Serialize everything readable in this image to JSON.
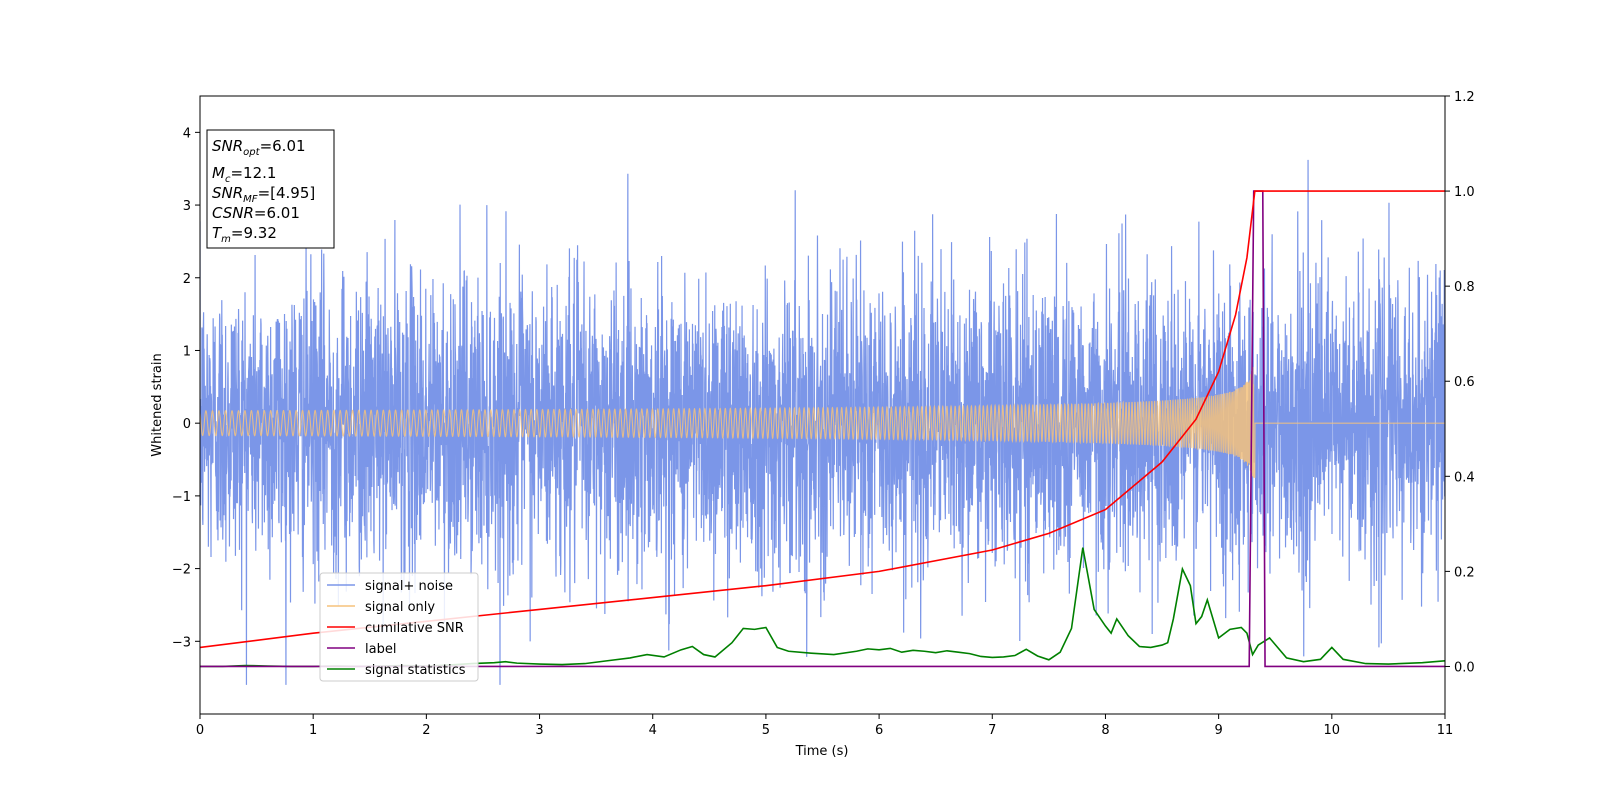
{
  "chart_data": {
    "type": "line",
    "xlabel": "Time (s)",
    "ylabel": "Whitened strain",
    "xlim": [
      0,
      11
    ],
    "ylim": [
      -4,
      4.5
    ],
    "y2lim": [
      -0.1,
      1.2
    ],
    "x_ticks": [
      0,
      1,
      2,
      3,
      4,
      5,
      6,
      7,
      8,
      9,
      10,
      11
    ],
    "y_ticks": [
      -3,
      -2,
      -1,
      0,
      1,
      2,
      3,
      4
    ],
    "y_tick_labels": [
      "−3",
      "−2",
      "−1",
      "0",
      "1",
      "2",
      "3",
      "4"
    ],
    "y2_ticks": [
      0.0,
      0.2,
      0.4,
      0.6,
      0.8,
      1.0,
      1.2
    ],
    "y2_tick_labels": [
      "0.0",
      "0.2",
      "0.4",
      "0.6",
      "0.8",
      "1.0",
      "1.2"
    ],
    "grid": false,
    "legend_position": "bottom-left",
    "info_box": {
      "position": "top-left",
      "lines": [
        {
          "sym": "SNR",
          "sub": "opt",
          "value": "=6.01"
        },
        {
          "sym": "M",
          "sub": "c",
          "value": "=12.1"
        },
        {
          "sym": "SNR",
          "sub": "MF",
          "value": "=[4.95]"
        },
        {
          "sym": "CSNR",
          "sub": "",
          "value": "=6.01"
        },
        {
          "sym": "T",
          "sub": "m",
          "value": "=9.32"
        }
      ]
    },
    "series": [
      {
        "name": "signal+ noise",
        "axis": "left",
        "color": "#7b96e8",
        "description_values": {
          "mean": 0,
          "std": 1.0,
          "min": -3.6,
          "max": 4.17
        }
      },
      {
        "name": "signal only",
        "axis": "left",
        "color": "#f5c27c",
        "merger_time": 9.32,
        "peak_amplitude": 0.85
      },
      {
        "name": "cumilative SNR",
        "axis": "right",
        "color": "#ff0000",
        "x": [
          0,
          1,
          2,
          3,
          4,
          5,
          6,
          7,
          7.5,
          8,
          8.5,
          8.8,
          9.0,
          9.15,
          9.25,
          9.32,
          11
        ],
        "y": [
          0.04,
          0.07,
          0.095,
          0.12,
          0.145,
          0.17,
          0.2,
          0.245,
          0.28,
          0.33,
          0.43,
          0.52,
          0.62,
          0.74,
          0.86,
          1.0,
          1.0
        ]
      },
      {
        "name": "label",
        "axis": "right",
        "color": "#800080",
        "x": [
          0,
          9.27,
          9.31,
          9.39,
          9.41,
          11
        ],
        "y": [
          0,
          0,
          1,
          1,
          0,
          0
        ]
      },
      {
        "name": "signal statistics",
        "axis": "right",
        "color": "#008000",
        "x": [
          0,
          0.2,
          0.4,
          0.6,
          0.8,
          1.0,
          1.2,
          1.4,
          1.6,
          1.8,
          2.0,
          2.2,
          2.4,
          2.6,
          2.7,
          2.8,
          3.0,
          3.2,
          3.4,
          3.6,
          3.8,
          3.95,
          4.1,
          4.25,
          4.35,
          4.45,
          4.55,
          4.7,
          4.8,
          4.9,
          5.0,
          5.1,
          5.2,
          5.4,
          5.6,
          5.8,
          5.9,
          6.0,
          6.1,
          6.2,
          6.3,
          6.4,
          6.5,
          6.6,
          6.7,
          6.8,
          6.9,
          7.0,
          7.1,
          7.2,
          7.3,
          7.4,
          7.5,
          7.6,
          7.7,
          7.8,
          7.9,
          8.0,
          8.05,
          8.1,
          8.2,
          8.3,
          8.4,
          8.5,
          8.55,
          8.6,
          8.68,
          8.75,
          8.8,
          8.85,
          8.9,
          9.0,
          9.1,
          9.2,
          9.25,
          9.3,
          9.35,
          9.45,
          9.6,
          9.75,
          9.9,
          10.0,
          10.1,
          10.3,
          10.5,
          10.8,
          11.0
        ],
        "y": [
          0.0,
          0.0,
          0.002,
          0.001,
          0.0,
          0.0,
          0.001,
          0.0,
          0.001,
          0.002,
          0.001,
          0.003,
          0.006,
          0.008,
          0.01,
          0.007,
          0.005,
          0.004,
          0.006,
          0.012,
          0.018,
          0.025,
          0.02,
          0.035,
          0.042,
          0.025,
          0.02,
          0.05,
          0.08,
          0.078,
          0.082,
          0.04,
          0.032,
          0.028,
          0.025,
          0.032,
          0.037,
          0.035,
          0.038,
          0.03,
          0.034,
          0.032,
          0.029,
          0.033,
          0.03,
          0.027,
          0.021,
          0.019,
          0.02,
          0.023,
          0.036,
          0.022,
          0.014,
          0.03,
          0.08,
          0.25,
          0.12,
          0.085,
          0.07,
          0.1,
          0.065,
          0.042,
          0.04,
          0.045,
          0.05,
          0.1,
          0.205,
          0.17,
          0.09,
          0.105,
          0.14,
          0.06,
          0.078,
          0.082,
          0.07,
          0.025,
          0.045,
          0.06,
          0.018,
          0.01,
          0.015,
          0.04,
          0.015,
          0.006,
          0.005,
          0.008,
          0.012
        ]
      }
    ]
  }
}
